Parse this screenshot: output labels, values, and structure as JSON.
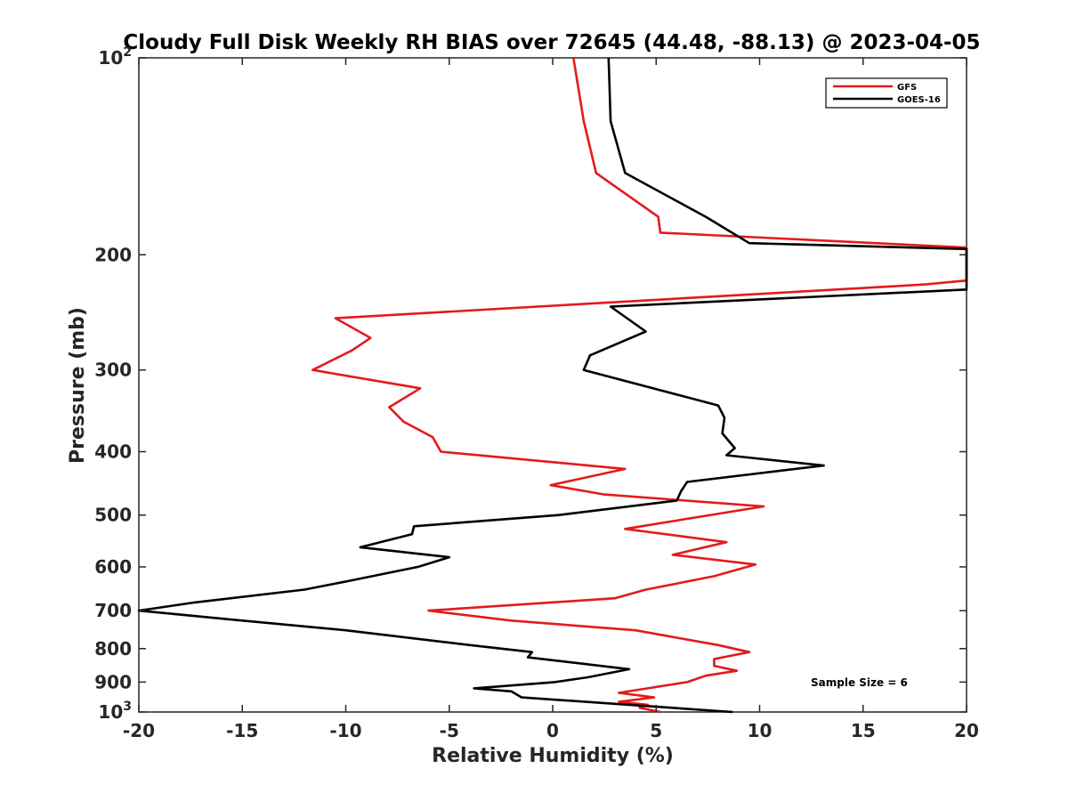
{
  "chart_data": {
    "type": "line",
    "title": "Cloudy Full Disk Weekly RH BIAS over 72645 (44.48, -88.13) @ 2023-04-05",
    "xlabel": "Relative Humidity (%)",
    "ylabel": "Pressure (mb)",
    "xlim": [
      -20,
      20
    ],
    "ylim": [
      100,
      1000
    ],
    "y_scale": "log",
    "y_reversed": true,
    "grid": false,
    "legend_position": "top-right",
    "x_ticks": [
      -20,
      -15,
      -10,
      -5,
      0,
      5,
      10,
      15,
      20
    ],
    "x_tick_labels": [
      "-20",
      "-15",
      "-10",
      "-5",
      "0",
      "5",
      "10",
      "15",
      "20"
    ],
    "y_ticks": [
      100,
      200,
      300,
      400,
      500,
      600,
      700,
      800,
      900,
      1000
    ],
    "y_tick_labels": [
      {
        "base": "10",
        "exp": "2"
      },
      {
        "base": "200",
        "exp": ""
      },
      {
        "base": "300",
        "exp": ""
      },
      {
        "base": "400",
        "exp": ""
      },
      {
        "base": "500",
        "exp": ""
      },
      {
        "base": "600",
        "exp": ""
      },
      {
        "base": "700",
        "exp": ""
      },
      {
        "base": "800",
        "exp": ""
      },
      {
        "base": "900",
        "exp": ""
      },
      {
        "base": "10",
        "exp": "3"
      }
    ],
    "annotation": "Sample Size = 6",
    "series": [
      {
        "name": "GFS",
        "color": "#e31a1c",
        "points": [
          {
            "x": 1.0,
            "p": 100
          },
          {
            "x": 1.5,
            "p": 125
          },
          {
            "x": 2.1,
            "p": 150
          },
          {
            "x": 5.1,
            "p": 175
          },
          {
            "x": 5.2,
            "p": 185
          },
          {
            "x": 20,
            "p": 195
          },
          {
            "x": 20,
            "p": 219
          },
          {
            "x": 18.0,
            "p": 222
          },
          {
            "x": -10.5,
            "p": 250
          },
          {
            "x": -8.8,
            "p": 268
          },
          {
            "x": -9.7,
            "p": 280
          },
          {
            "x": -11.6,
            "p": 300
          },
          {
            "x": -6.4,
            "p": 320
          },
          {
            "x": -7.9,
            "p": 342
          },
          {
            "x": -7.2,
            "p": 360
          },
          {
            "x": -5.8,
            "p": 380
          },
          {
            "x": -5.4,
            "p": 400
          },
          {
            "x": 3.5,
            "p": 425
          },
          {
            "x": -0.1,
            "p": 450
          },
          {
            "x": 2.5,
            "p": 465
          },
          {
            "x": 10.2,
            "p": 485
          },
          {
            "x": 3.5,
            "p": 525
          },
          {
            "x": 8.4,
            "p": 550
          },
          {
            "x": 5.8,
            "p": 575
          },
          {
            "x": 9.8,
            "p": 595
          },
          {
            "x": 7.8,
            "p": 620
          },
          {
            "x": 4.5,
            "p": 650
          },
          {
            "x": 3.0,
            "p": 670
          },
          {
            "x": -6.0,
            "p": 700
          },
          {
            "x": -2.0,
            "p": 725
          },
          {
            "x": 4.0,
            "p": 750
          },
          {
            "x": 8.0,
            "p": 790
          },
          {
            "x": 9.5,
            "p": 810
          },
          {
            "x": 7.8,
            "p": 830
          },
          {
            "x": 7.8,
            "p": 850
          },
          {
            "x": 8.9,
            "p": 865
          },
          {
            "x": 7.4,
            "p": 880
          },
          {
            "x": 6.5,
            "p": 900
          },
          {
            "x": 3.2,
            "p": 935
          },
          {
            "x": 4.9,
            "p": 950
          },
          {
            "x": 3.2,
            "p": 965
          },
          {
            "x": 4.6,
            "p": 975
          },
          {
            "x": 4.2,
            "p": 985
          },
          {
            "x": 5.2,
            "p": 1000
          }
        ]
      },
      {
        "name": "GOES-16",
        "color": "#000000",
        "points": [
          {
            "x": 2.7,
            "p": 100
          },
          {
            "x": 2.8,
            "p": 125
          },
          {
            "x": 3.5,
            "p": 150
          },
          {
            "x": 7.4,
            "p": 175
          },
          {
            "x": 9.5,
            "p": 192
          },
          {
            "x": 20,
            "p": 196
          },
          {
            "x": 20,
            "p": 226
          },
          {
            "x": 2.8,
            "p": 240
          },
          {
            "x": 4.5,
            "p": 262
          },
          {
            "x": 1.8,
            "p": 285
          },
          {
            "x": 1.5,
            "p": 300
          },
          {
            "x": 8.0,
            "p": 340
          },
          {
            "x": 8.3,
            "p": 355
          },
          {
            "x": 8.2,
            "p": 375
          },
          {
            "x": 8.8,
            "p": 395
          },
          {
            "x": 8.4,
            "p": 405
          },
          {
            "x": 13.1,
            "p": 420
          },
          {
            "x": 6.5,
            "p": 445
          },
          {
            "x": 6.2,
            "p": 460
          },
          {
            "x": 6.0,
            "p": 475
          },
          {
            "x": 0.3,
            "p": 500
          },
          {
            "x": -6.7,
            "p": 520
          },
          {
            "x": -6.8,
            "p": 535
          },
          {
            "x": -9.3,
            "p": 560
          },
          {
            "x": -5.0,
            "p": 580
          },
          {
            "x": -6.5,
            "p": 600
          },
          {
            "x": -9.8,
            "p": 630
          },
          {
            "x": -12.0,
            "p": 650
          },
          {
            "x": -17.3,
            "p": 680
          },
          {
            "x": -20,
            "p": 700
          },
          {
            "x": -16.0,
            "p": 720
          },
          {
            "x": -10.0,
            "p": 750
          },
          {
            "x": -4.0,
            "p": 790
          },
          {
            "x": -1.0,
            "p": 810
          },
          {
            "x": -1.2,
            "p": 825
          },
          {
            "x": 3.7,
            "p": 860
          },
          {
            "x": 1.7,
            "p": 885
          },
          {
            "x": 0.1,
            "p": 900
          },
          {
            "x": -3.8,
            "p": 920
          },
          {
            "x": -2.0,
            "p": 930
          },
          {
            "x": -1.5,
            "p": 950
          },
          {
            "x": 8.7,
            "p": 1000
          }
        ]
      }
    ]
  }
}
